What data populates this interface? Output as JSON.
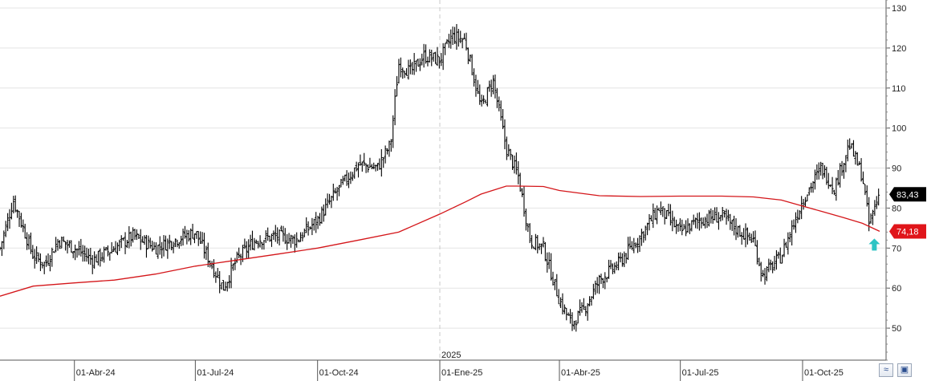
{
  "chart_data": {
    "type": "bar",
    "title": "",
    "ylim": [
      42,
      132
    ],
    "y_ticks": [
      50,
      60,
      70,
      80,
      90,
      100,
      110,
      120,
      130
    ],
    "x_labels": [
      "01-Abr-24",
      "01-Jul-24",
      "01-Oct-24",
      "01-Ene-25",
      "01-Abr-25",
      "01-Jul-25",
      "01-Oct-25"
    ],
    "x_label_dates": [
      "2024-04-01",
      "2024-07-01",
      "2024-10-01",
      "2025-01-01",
      "2025-04-01",
      "2025-07-01",
      "2025-10-01"
    ],
    "year_marker": {
      "label": "2025",
      "date": "2025-01-01"
    },
    "date_range": [
      "2024-02-05",
      "2025-11-28"
    ],
    "grid": true,
    "price_series": {
      "name": "",
      "color": "#000000",
      "style": "ohlc-bar",
      "x": [
        "2024-02-05",
        "2024-02-15",
        "2024-03-01",
        "2024-03-10",
        "2024-03-20",
        "2024-04-01",
        "2024-04-15",
        "2024-05-01",
        "2024-05-15",
        "2024-06-01",
        "2024-06-15",
        "2024-07-01",
        "2024-07-10",
        "2024-07-22",
        "2024-08-01",
        "2024-08-15",
        "2024-09-01",
        "2024-09-15",
        "2024-10-01",
        "2024-10-15",
        "2024-11-01",
        "2024-11-15",
        "2024-11-25",
        "2024-12-01",
        "2024-12-10",
        "2024-12-20",
        "2025-01-01",
        "2025-01-10",
        "2025-01-20",
        "2025-02-01",
        "2025-02-10",
        "2025-02-20",
        "2025-03-01",
        "2025-03-10",
        "2025-03-20",
        "2025-04-01",
        "2025-04-10",
        "2025-04-20",
        "2025-05-01",
        "2025-05-15",
        "2025-06-01",
        "2025-06-15",
        "2025-07-01",
        "2025-07-15",
        "2025-08-01",
        "2025-08-15",
        "2025-08-25",
        "2025-09-01",
        "2025-09-15",
        "2025-10-01",
        "2025-10-15",
        "2025-10-25",
        "2025-11-05",
        "2025-11-15",
        "2025-11-20",
        "2025-11-28"
      ],
      "values": [
        70,
        82,
        68,
        66,
        72,
        70,
        67,
        70,
        73,
        70,
        72,
        74,
        68,
        60,
        67,
        72,
        73,
        72,
        77,
        84,
        91,
        90,
        96,
        116,
        114,
        118,
        117,
        123,
        122,
        105,
        112,
        95,
        88,
        72,
        70,
        57,
        51,
        55,
        62,
        66,
        73,
        80,
        74,
        77,
        78,
        74,
        72,
        63,
        68,
        82,
        90,
        85,
        96,
        88,
        76,
        84
      ]
    },
    "moving_average": {
      "name": "",
      "color": "#d4161a",
      "x": [
        "2024-02-05",
        "2024-03-01",
        "2024-04-01",
        "2024-05-01",
        "2024-06-01",
        "2024-07-01",
        "2024-08-01",
        "2024-09-01",
        "2024-10-01",
        "2024-11-01",
        "2024-12-01",
        "2025-01-01",
        "2025-01-20",
        "2025-02-01",
        "2025-02-20",
        "2025-03-01",
        "2025-03-20",
        "2025-04-01",
        "2025-05-01",
        "2025-06-01",
        "2025-07-01",
        "2025-08-01",
        "2025-08-25",
        "2025-09-15",
        "2025-10-01",
        "2025-10-15",
        "2025-11-01",
        "2025-11-15",
        "2025-11-28"
      ],
      "values": [
        58,
        60.5,
        61.3,
        62,
        63.5,
        65.5,
        67,
        68.5,
        70,
        72,
        74,
        78.5,
        81.5,
        83.5,
        85.5,
        85.5,
        85.4,
        84.4,
        83.1,
        82.9,
        83,
        83,
        82.8,
        82,
        80.5,
        79.2,
        77.6,
        76.2,
        74.2
      ]
    },
    "last_price": {
      "value": "83,43",
      "bg": "#000000",
      "fg": "#ffffff"
    },
    "ma_last": {
      "value": "74,18",
      "bg": "#e0151a",
      "fg": "#ffffff"
    },
    "signal_arrow": {
      "direction": "up",
      "color": "#2ec4c4",
      "date": "2025-11-24",
      "value": 71
    }
  },
  "toolbar": {
    "btn1_icon": "zoom-fit-icon",
    "btn2_icon": "save-icon",
    "btn1_glyph": "≈",
    "btn2_glyph": "▣"
  }
}
